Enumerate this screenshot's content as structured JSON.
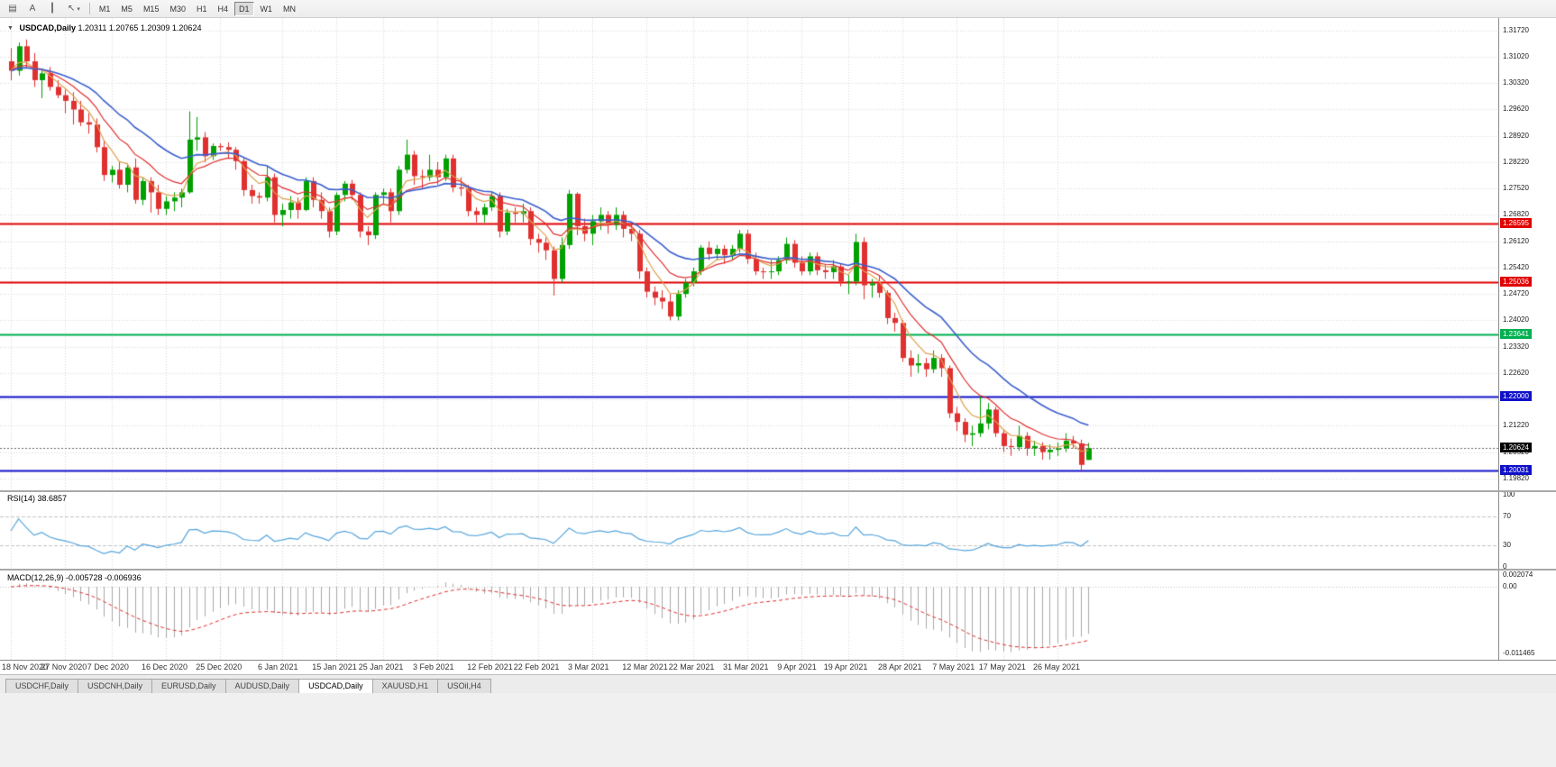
{
  "toolbar": {
    "icons": [
      {
        "name": "chart-list-icon",
        "glyph": "▤"
      },
      {
        "name": "annotation-text-icon",
        "glyph": "A"
      },
      {
        "name": "vertical-line-tool-icon",
        "glyph": "┃"
      },
      {
        "name": "cursor-tool-icon",
        "glyph": "↖",
        "dropdown": "▾"
      }
    ],
    "timeframes": [
      "M1",
      "M5",
      "M15",
      "M30",
      "H1",
      "H4",
      "D1",
      "W1",
      "MN"
    ],
    "selected_timeframe": "D1"
  },
  "ui": {
    "collapse_glyph": "▼"
  },
  "chart_data": [
    {
      "type": "candlestick",
      "title": "USDCAD,Daily",
      "ohlc_text": "1.20311 1.20765 1.20309 1.20624",
      "ylim": [
        1.1948,
        1.3205
      ],
      "up_color": "#00A000",
      "down_color": "#E03030",
      "y_ticks": [
        {
          "text": "1.31720",
          "value": 1.3172
        },
        {
          "text": "1.31020",
          "value": 1.3102
        },
        {
          "text": "1.30320",
          "value": 1.3032
        },
        {
          "text": "1.29620",
          "value": 1.2962
        },
        {
          "text": "1.28920",
          "value": 1.2892
        },
        {
          "text": "1.28220",
          "value": 1.2822
        },
        {
          "text": "1.27520",
          "value": 1.2752
        },
        {
          "text": "1.26820",
          "value": 1.2682
        },
        {
          "text": "1.26120",
          "value": 1.2612
        },
        {
          "text": "1.25420",
          "value": 1.2542
        },
        {
          "text": "1.24720",
          "value": 1.2472
        },
        {
          "text": "1.24020",
          "value": 1.2402
        },
        {
          "text": "1.23320",
          "value": 1.2332
        },
        {
          "text": "1.22620",
          "value": 1.2262
        },
        {
          "text": "1.21920",
          "value": 1.2192
        },
        {
          "text": "1.21220",
          "value": 1.2122
        },
        {
          "text": "1.20520",
          "value": 1.2052
        },
        {
          "text": "1.19820",
          "value": 1.1982
        }
      ],
      "x_labels": [
        {
          "text": "18 Nov 2020",
          "bar": 0
        },
        {
          "text": "27 Nov 2020",
          "bar": 7
        },
        {
          "text": "7 Dec 2020",
          "bar": 13
        },
        {
          "text": "16 Dec 2020",
          "bar": 20
        },
        {
          "text": "25 Dec 2020",
          "bar": 27
        },
        {
          "text": "6 Jan 2021",
          "bar": 35
        },
        {
          "text": "15 Jan 2021",
          "bar": 42
        },
        {
          "text": "25 Jan 2021",
          "bar": 48
        },
        {
          "text": "3 Feb 2021",
          "bar": 55
        },
        {
          "text": "12 Feb 2021",
          "bar": 62
        },
        {
          "text": "22 Feb 2021",
          "bar": 68
        },
        {
          "text": "3 Mar 2021",
          "bar": 75
        },
        {
          "text": "12 Mar 2021",
          "bar": 82
        },
        {
          "text": "22 Mar 2021",
          "bar": 88
        },
        {
          "text": "31 Mar 2021",
          "bar": 95
        },
        {
          "text": "9 Apr 2021",
          "bar": 102
        },
        {
          "text": "19 Apr 2021",
          "bar": 108
        },
        {
          "text": "28 Apr 2021",
          "bar": 115
        },
        {
          "text": "7 May 2021",
          "bar": 122
        },
        {
          "text": "17 May 2021",
          "bar": 128
        },
        {
          "text": "26 May 2021",
          "bar": 135
        }
      ],
      "overlays": [
        {
          "name": "ma-fast",
          "period": 5,
          "color": "#DFA14E"
        },
        {
          "name": "ma-medium",
          "period": 10,
          "color": "#E03030"
        },
        {
          "name": "ma-slow",
          "period": 20,
          "color": "#3A5FCD"
        }
      ],
      "h_lines": [
        {
          "value": 1.26595,
          "text": "1.26595",
          "color": "#E00000",
          "width": 2
        },
        {
          "value": 1.25036,
          "text": "1.25036",
          "color": "#E00000",
          "width": 2
        },
        {
          "value": 1.23641,
          "text": "1.23641",
          "color": "#00B050",
          "width": 2
        },
        {
          "value": 1.22,
          "text": "1.22000",
          "color": "#1010C8",
          "width": 2
        },
        {
          "value": 1.20031,
          "text": "1.20031",
          "color": "#1010C8",
          "width": 2
        }
      ],
      "current_price": {
        "value": 1.20624,
        "text": "1.20624",
        "badge_color": "#000000"
      },
      "bars": [
        [
          1.309,
          1.3125,
          1.304,
          1.3065
        ],
        [
          1.3065,
          1.314,
          1.3052,
          1.313
        ],
        [
          1.313,
          1.3148,
          1.3072,
          1.309
        ],
        [
          1.309,
          1.3112,
          1.3022,
          1.304
        ],
        [
          1.304,
          1.3068,
          1.2992,
          1.3058
        ],
        [
          1.3058,
          1.3075,
          1.3012,
          1.3022
        ],
        [
          1.3022,
          1.304,
          1.2992,
          1.3
        ],
        [
          1.3,
          1.3015,
          1.2952,
          1.2985
        ],
        [
          1.2985,
          1.3008,
          1.2922,
          1.2962
        ],
        [
          1.2962,
          1.2985,
          1.2918,
          1.2928
        ],
        [
          1.2928,
          1.2952,
          1.2898,
          1.2922
        ],
        [
          1.2922,
          1.2938,
          1.2848,
          1.2862
        ],
        [
          1.2862,
          1.288,
          1.2772,
          1.2788
        ],
        [
          1.2788,
          1.2812,
          1.2768,
          1.2802
        ],
        [
          1.2802,
          1.2822,
          1.2752,
          1.2762
        ],
        [
          1.2762,
          1.2818,
          1.2742,
          1.2808
        ],
        [
          1.2808,
          1.2832,
          1.2712,
          1.2722
        ],
        [
          1.2722,
          1.2782,
          1.2708,
          1.2772
        ],
        [
          1.2772,
          1.2782,
          1.2688,
          1.2742
        ],
        [
          1.2742,
          1.2762,
          1.2682,
          1.2698
        ],
        [
          1.2698,
          1.2732,
          1.2682,
          1.2718
        ],
        [
          1.2718,
          1.2742,
          1.2692,
          1.2728
        ],
        [
          1.2728,
          1.2752,
          1.2702,
          1.2742
        ],
        [
          1.2742,
          1.2957,
          1.2738,
          1.2882
        ],
        [
          1.2882,
          1.2942,
          1.2852,
          1.2888
        ],
        [
          1.2888,
          1.2902,
          1.2822,
          1.2838
        ],
        [
          1.2838,
          1.2872,
          1.2828,
          1.2865
        ],
        [
          1.2865,
          1.2872,
          1.2852,
          1.2862
        ],
        [
          1.2862,
          1.2875,
          1.2832,
          1.2855
        ],
        [
          1.2855,
          1.2862,
          1.2802,
          1.2825
        ],
        [
          1.2825,
          1.2832,
          1.2732,
          1.2748
        ],
        [
          1.2748,
          1.2762,
          1.2712,
          1.2732
        ],
        [
          1.2732,
          1.2742,
          1.2712,
          1.2728
        ],
        [
          1.2728,
          1.2812,
          1.2718,
          1.2782
        ],
        [
          1.2782,
          1.2792,
          1.2662,
          1.2682
        ],
        [
          1.2682,
          1.2712,
          1.2652,
          1.2695
        ],
        [
          1.2695,
          1.2732,
          1.2672,
          1.2715
        ],
        [
          1.2715,
          1.2728,
          1.2672,
          1.2695
        ],
        [
          1.2695,
          1.2782,
          1.2692,
          1.2772
        ],
        [
          1.2772,
          1.2782,
          1.2702,
          1.2722
        ],
        [
          1.2722,
          1.2742,
          1.2672,
          1.2692
        ],
        [
          1.2692,
          1.2702,
          1.2622,
          1.2638
        ],
        [
          1.2638,
          1.2742,
          1.2628,
          1.2735
        ],
        [
          1.2735,
          1.2772,
          1.2718,
          1.2765
        ],
        [
          1.2765,
          1.2775,
          1.2722,
          1.2735
        ],
        [
          1.2735,
          1.2742,
          1.2622,
          1.2638
        ],
        [
          1.2638,
          1.2652,
          1.2602,
          1.2628
        ],
        [
          1.2628,
          1.2742,
          1.2618,
          1.2735
        ],
        [
          1.2735,
          1.2752,
          1.2712,
          1.2742
        ],
        [
          1.2742,
          1.2752,
          1.2662,
          1.2692
        ],
        [
          1.2692,
          1.2812,
          1.2682,
          1.2802
        ],
        [
          1.2802,
          1.2882,
          1.2792,
          1.2842
        ],
        [
          1.2842,
          1.2852,
          1.2762,
          1.2785
        ],
        [
          1.2785,
          1.2802,
          1.2752,
          1.2782
        ],
        [
          1.2782,
          1.2842,
          1.2772,
          1.2802
        ],
        [
          1.2802,
          1.2822,
          1.2762,
          1.2782
        ],
        [
          1.2782,
          1.2842,
          1.2772,
          1.2832
        ],
        [
          1.2832,
          1.2842,
          1.2742,
          1.2755
        ],
        [
          1.2755,
          1.2782,
          1.2732,
          1.2752
        ],
        [
          1.2752,
          1.2762,
          1.2678,
          1.2692
        ],
        [
          1.2692,
          1.2702,
          1.2662,
          1.2682
        ],
        [
          1.2682,
          1.2712,
          1.2662,
          1.2702
        ],
        [
          1.2702,
          1.2742,
          1.2692,
          1.2732
        ],
        [
          1.2732,
          1.2742,
          1.2622,
          1.2638
        ],
        [
          1.2638,
          1.2698,
          1.2628,
          1.2688
        ],
        [
          1.2688,
          1.2702,
          1.2662,
          1.2685
        ],
        [
          1.2685,
          1.2712,
          1.2662,
          1.2692
        ],
        [
          1.2692,
          1.2702,
          1.2602,
          1.2618
        ],
        [
          1.2618,
          1.2632,
          1.2582,
          1.2608
        ],
        [
          1.2608,
          1.2622,
          1.2562,
          1.2588
        ],
        [
          1.2588,
          1.2598,
          1.2468,
          1.2512
        ],
        [
          1.2512,
          1.2622,
          1.2502,
          1.2602
        ],
        [
          1.2602,
          1.2748,
          1.2592,
          1.2738
        ],
        [
          1.2738,
          1.2742,
          1.2628,
          1.2652
        ],
        [
          1.2652,
          1.2672,
          1.2612,
          1.2632
        ],
        [
          1.2632,
          1.2682,
          1.2602,
          1.2665
        ],
        [
          1.2665,
          1.2702,
          1.2642,
          1.2682
        ],
        [
          1.2682,
          1.2692,
          1.2632,
          1.2655
        ],
        [
          1.2655,
          1.2702,
          1.2642,
          1.2682
        ],
        [
          1.2682,
          1.2692,
          1.2622,
          1.2645
        ],
        [
          1.2645,
          1.2662,
          1.2612,
          1.2632
        ],
        [
          1.2632,
          1.2642,
          1.2512,
          1.2532
        ],
        [
          1.2532,
          1.2542,
          1.2462,
          1.2478
        ],
        [
          1.2478,
          1.2492,
          1.2442,
          1.2462
        ],
        [
          1.2462,
          1.2482,
          1.2432,
          1.2452
        ],
        [
          1.2452,
          1.2472,
          1.2402,
          1.2412
        ],
        [
          1.2412,
          1.2482,
          1.2402,
          1.2472
        ],
        [
          1.2472,
          1.2512,
          1.2462,
          1.2502
        ],
        [
          1.2502,
          1.2542,
          1.2492,
          1.2532
        ],
        [
          1.2532,
          1.2602,
          1.2522,
          1.2595
        ],
        [
          1.2595,
          1.2612,
          1.2562,
          1.2578
        ],
        [
          1.2578,
          1.2602,
          1.2562,
          1.2592
        ],
        [
          1.2592,
          1.2602,
          1.2552,
          1.2575
        ],
        [
          1.2575,
          1.2602,
          1.2562,
          1.2592
        ],
        [
          1.2592,
          1.2642,
          1.2582,
          1.2632
        ],
        [
          1.2632,
          1.2642,
          1.2552,
          1.2565
        ],
        [
          1.2565,
          1.2582,
          1.2522,
          1.2532
        ],
        [
          1.2532,
          1.2542,
          1.2512,
          1.253
        ],
        [
          1.253,
          1.2562,
          1.2512,
          1.2532
        ],
        [
          1.2532,
          1.2572,
          1.2522,
          1.2562
        ],
        [
          1.2562,
          1.2622,
          1.2552,
          1.2605
        ],
        [
          1.2605,
          1.2615,
          1.2542,
          1.2555
        ],
        [
          1.2555,
          1.2572,
          1.2522,
          1.2532
        ],
        [
          1.2532,
          1.2582,
          1.2522,
          1.2572
        ],
        [
          1.2572,
          1.2582,
          1.2522,
          1.2535
        ],
        [
          1.2535,
          1.2552,
          1.2512,
          1.253
        ],
        [
          1.253,
          1.2562,
          1.2512,
          1.2545
        ],
        [
          1.2545,
          1.2552,
          1.2492,
          1.2505
        ],
        [
          1.2505,
          1.2522,
          1.2472,
          1.2505
        ],
        [
          1.2505,
          1.2632,
          1.2495,
          1.261
        ],
        [
          1.261,
          1.2622,
          1.2458,
          1.2495
        ],
        [
          1.2495,
          1.2512,
          1.2462,
          1.25
        ],
        [
          1.25,
          1.2522,
          1.2462,
          1.2475
        ],
        [
          1.2475,
          1.2482,
          1.2392,
          1.2408
        ],
        [
          1.2408,
          1.2422,
          1.2372,
          1.2395
        ],
        [
          1.2395,
          1.2402,
          1.2292,
          1.2302
        ],
        [
          1.2302,
          1.2322,
          1.2252,
          1.2282
        ],
        [
          1.2282,
          1.2312,
          1.2262,
          1.2288
        ],
        [
          1.2288,
          1.2302,
          1.2252,
          1.2272
        ],
        [
          1.2272,
          1.2322,
          1.2262,
          1.2302
        ],
        [
          1.2302,
          1.2312,
          1.2252,
          1.2275
        ],
        [
          1.2275,
          1.2282,
          1.2142,
          1.2155
        ],
        [
          1.2155,
          1.2172,
          1.2108,
          1.2132
        ],
        [
          1.2132,
          1.2142,
          1.2078,
          1.2098
        ],
        [
          1.2098,
          1.2122,
          1.2068,
          1.2102
        ],
        [
          1.2102,
          1.2202,
          1.2092,
          1.2128
        ],
        [
          1.2128,
          1.2182,
          1.2112,
          1.2165
        ],
        [
          1.2165,
          1.2172,
          1.2092,
          1.2102
        ],
        [
          1.2102,
          1.2112,
          1.2052,
          1.2068
        ],
        [
          1.2068,
          1.2088,
          1.2042,
          1.2065
        ],
        [
          1.2065,
          1.2122,
          1.2055,
          1.2095
        ],
        [
          1.2095,
          1.2105,
          1.2042,
          1.2062
        ],
        [
          1.2062,
          1.2082,
          1.2042,
          1.2068
        ],
        [
          1.2068,
          1.2078,
          1.2032,
          1.2052
        ],
        [
          1.2052,
          1.2072,
          1.2032,
          1.2058
        ],
        [
          1.2058,
          1.2078,
          1.2042,
          1.2062
        ],
        [
          1.2062,
          1.2102,
          1.2052,
          1.2082
        ],
        [
          1.2082,
          1.2095,
          1.2062,
          1.2075
        ],
        [
          1.2075,
          1.2085,
          1.2004,
          1.2018
        ],
        [
          1.20311,
          1.20765,
          1.20309,
          1.20624
        ]
      ]
    },
    {
      "type": "line",
      "title": "RSI(14) 38.6857",
      "indicator": "RSI",
      "period": 14,
      "last_value": 38.6857,
      "ylim": [
        0,
        100
      ],
      "levels": [
        70,
        30
      ],
      "y_ticks": [
        {
          "text": "100",
          "value": 100
        },
        {
          "text": "70",
          "value": 70
        },
        {
          "text": "30",
          "value": 30
        },
        {
          "text": "0",
          "value": 0
        }
      ],
      "color": "#56A5DC"
    },
    {
      "type": "bar",
      "title": "MACD(12,26,9) -0.005728 -0.006936",
      "indicator": "MACD",
      "fast": 12,
      "slow": 26,
      "signal": 9,
      "last_macd": -0.005728,
      "last_signal": -0.006936,
      "ylim": [
        -0.0125,
        0.0028
      ],
      "y_ticks": [
        {
          "text": "0.002074",
          "value": 0.002074
        },
        {
          "text": "0.00",
          "value": 0
        },
        {
          "text": "-0.011465",
          "value": -0.011465
        }
      ],
      "hist_color": "#A9A9A9",
      "signal_color": "#E03030"
    }
  ],
  "tabs": {
    "active": "USDCAD,Daily",
    "items": [
      "USDCHF,Daily",
      "USDCNH,Daily",
      "EURUSD,Daily",
      "AUDUSD,Daily",
      "USDCAD,Daily",
      "XAUUSD,H1",
      "USOil,H4"
    ]
  }
}
